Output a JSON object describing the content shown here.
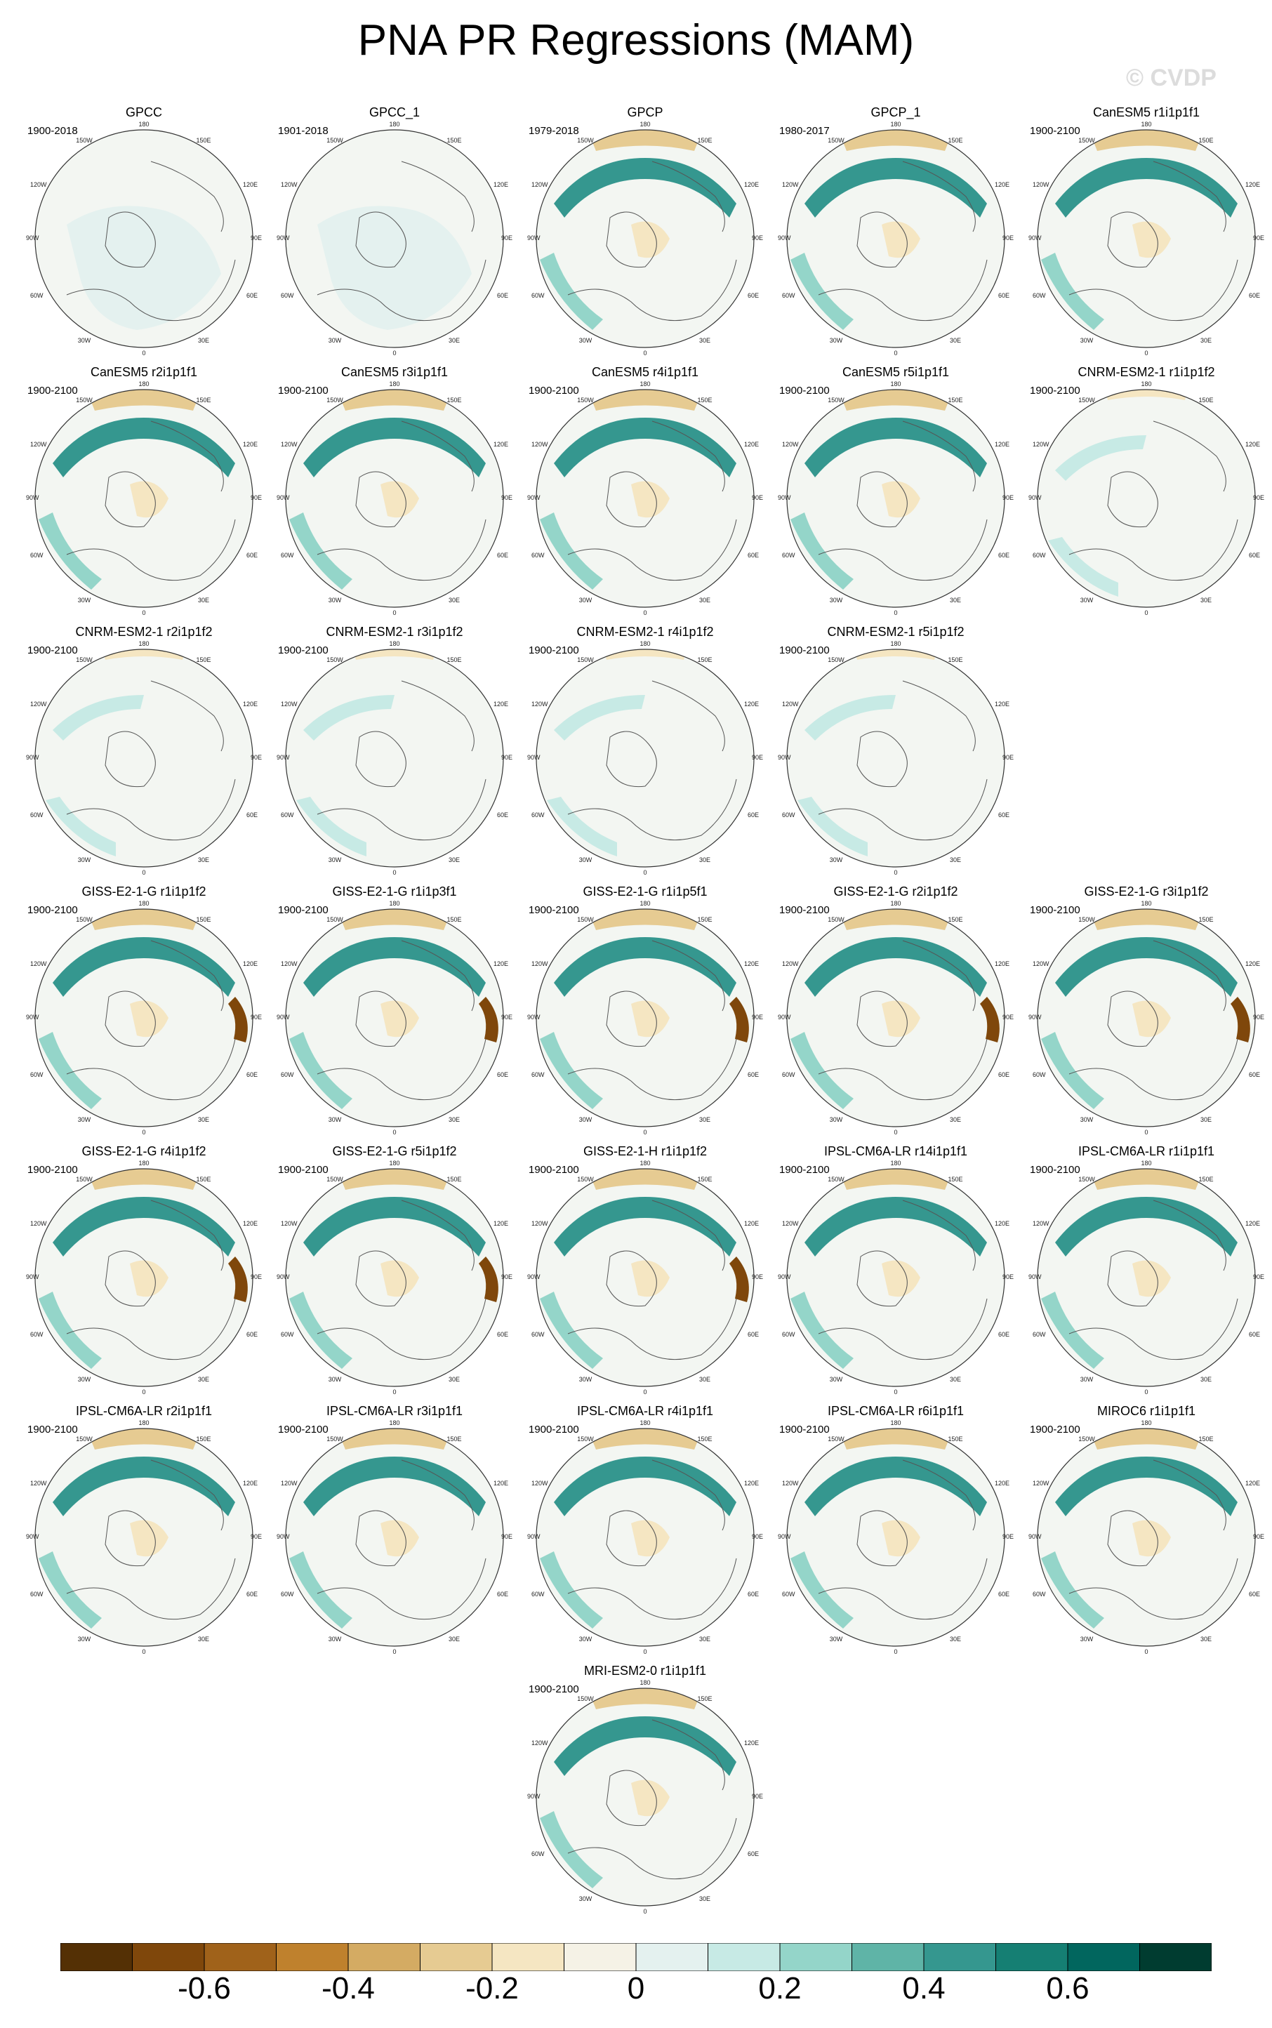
{
  "title": "PNA PR Regressions (MAM)",
  "watermark": "© CVDP",
  "map_labels": {
    "top": "180",
    "top_left": "150W",
    "top_right": "150E",
    "upper_left": "120W",
    "upper_right": "120E",
    "left": "90W",
    "right": "90E",
    "lower_left": "60W",
    "lower_right": "60E",
    "bottom_left": "30W",
    "bottom_right": "30E",
    "bottom": "0"
  },
  "panels": [
    {
      "title": "GPCC",
      "years": "1900-2018",
      "mode": "obs-gpcc"
    },
    {
      "title": "GPCC_1",
      "years": "1901-2018",
      "mode": "obs-gpcc"
    },
    {
      "title": "GPCP",
      "years": "1979-2018",
      "mode": "obs"
    },
    {
      "title": "GPCP_1",
      "years": "1980-2017",
      "mode": "obs"
    },
    {
      "title": "CanESM5 r1i1p1f1",
      "years": "1900-2100",
      "mode": "model"
    },
    {
      "title": "CanESM5 r2i1p1f1",
      "years": "1900-2100",
      "mode": "model"
    },
    {
      "title": "CanESM5 r3i1p1f1",
      "years": "1900-2100",
      "mode": "model"
    },
    {
      "title": "CanESM5 r4i1p1f1",
      "years": "1900-2100",
      "mode": "model"
    },
    {
      "title": "CanESM5 r5i1p1f1",
      "years": "1900-2100",
      "mode": "model"
    },
    {
      "title": "CNRM-ESM2-1 r1i1p1f2",
      "years": "1900-2100",
      "mode": "weak"
    },
    {
      "title": "CNRM-ESM2-1 r2i1p1f2",
      "years": "1900-2100",
      "mode": "weak"
    },
    {
      "title": "CNRM-ESM2-1 r3i1p1f2",
      "years": "1900-2100",
      "mode": "weak"
    },
    {
      "title": "CNRM-ESM2-1 r4i1p1f2",
      "years": "1900-2100",
      "mode": "weak"
    },
    {
      "title": "CNRM-ESM2-1 r5i1p1f2",
      "years": "1900-2100",
      "mode": "weak"
    },
    {
      "title": "GISS-E2-1-G r1i1p1f2",
      "years": "1900-2100",
      "mode": "strong"
    },
    {
      "title": "GISS-E2-1-G r1i1p3f1",
      "years": "1900-2100",
      "mode": "strong"
    },
    {
      "title": "GISS-E2-1-G r1i1p5f1",
      "years": "1900-2100",
      "mode": "strong"
    },
    {
      "title": "GISS-E2-1-G r2i1p1f2",
      "years": "1900-2100",
      "mode": "strong"
    },
    {
      "title": "GISS-E2-1-G r3i1p1f2",
      "years": "1900-2100",
      "mode": "strong"
    },
    {
      "title": "GISS-E2-1-G r4i1p1f2",
      "years": "1900-2100",
      "mode": "strong"
    },
    {
      "title": "GISS-E2-1-G r5i1p1f2",
      "years": "1900-2100",
      "mode": "strong"
    },
    {
      "title": "GISS-E2-1-H r1i1p1f2",
      "years": "1900-2100",
      "mode": "strong"
    },
    {
      "title": "IPSL-CM6A-LR r14i1p1f1",
      "years": "1900-2100",
      "mode": "model"
    },
    {
      "title": "IPSL-CM6A-LR r1i1p1f1",
      "years": "1900-2100",
      "mode": "model"
    },
    {
      "title": "IPSL-CM6A-LR r2i1p1f1",
      "years": "1900-2100",
      "mode": "model"
    },
    {
      "title": "IPSL-CM6A-LR r3i1p1f1",
      "years": "1900-2100",
      "mode": "model"
    },
    {
      "title": "IPSL-CM6A-LR r4i1p1f1",
      "years": "1900-2100",
      "mode": "model"
    },
    {
      "title": "IPSL-CM6A-LR r6i1p1f1",
      "years": "1900-2100",
      "mode": "model"
    },
    {
      "title": "MIROC6 r1i1p1f1",
      "years": "1900-2100",
      "mode": "model"
    },
    {
      "title": "MRI-ESM2-0 r1i1p1f1",
      "years": "1900-2100",
      "mode": "model"
    }
  ],
  "colorbar": {
    "colors": [
      "#543005",
      "#7f470b",
      "#a0621a",
      "#bf812d",
      "#d4ab63",
      "#e6cb92",
      "#f5e6c2",
      "#f5f2e6",
      "#e4f1ef",
      "#c7eae5",
      "#94d5c9",
      "#5fb4a7",
      "#35978f",
      "#157f73",
      "#01665e",
      "#003c30"
    ],
    "ticks": [
      "-0.6",
      "-0.4",
      "-0.2",
      "0",
      "0.2",
      "0.4",
      "0.6"
    ]
  }
}
